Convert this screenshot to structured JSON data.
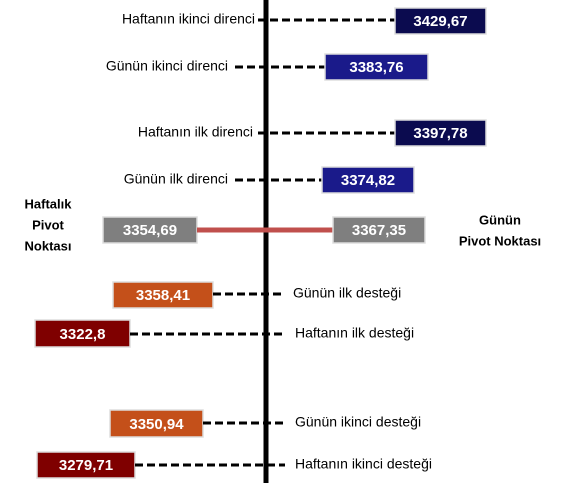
{
  "levels": [
    {
      "label": "Haftanın ikinci direnci",
      "value": "3429,67"
    },
    {
      "label": "Günün ikinci direnci",
      "value": "3383,76"
    },
    {
      "label": "Haftanın ilk direnci",
      "value": "3397,78"
    },
    {
      "label": "Günün ilk direnci",
      "value": "3374,82"
    },
    {
      "label": "Günün ilk desteği",
      "value": "3358,41"
    },
    {
      "label": "Haftanın ilk desteği",
      "value": "3322,8"
    },
    {
      "label": "Günün ikinci desteği",
      "value": "3350,94"
    },
    {
      "label": "Haftanın ikinci desteği",
      "value": "3279,71"
    }
  ],
  "pivots": {
    "weekly": {
      "label": [
        "Haftalık",
        "Pivot",
        "Noktası"
      ],
      "value": "3354,69"
    },
    "daily": {
      "label": [
        "Günün",
        "Pivot Noktası"
      ],
      "value": "3367,35"
    }
  }
}
